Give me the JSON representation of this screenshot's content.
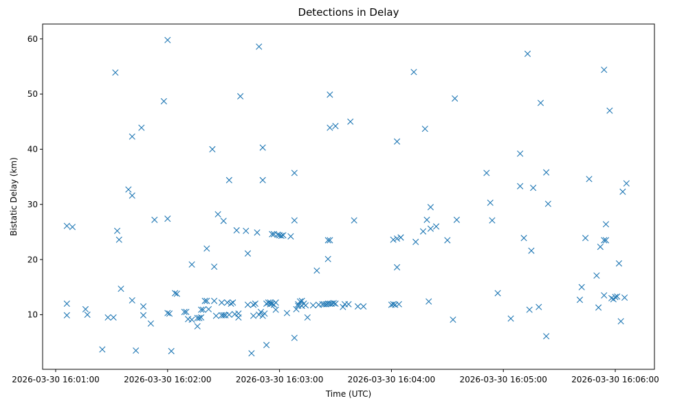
{
  "chart_data": {
    "type": "scatter",
    "title": "Detections in Delay",
    "xlabel": "Time (UTC)",
    "ylabel": "Bistatic Delay (km)",
    "x_tick_labels": [
      "2026-03-30 16:01:00",
      "2026-03-30 16:02:00",
      "2026-03-30 16:03:00",
      "2026-03-30 16:04:00",
      "2026-03-30 16:05:00",
      "2026-03-30 16:06:00"
    ],
    "y_tick_labels": [
      "10",
      "20",
      "30",
      "40",
      "50",
      "60"
    ],
    "y_ticks": [
      10,
      20,
      30,
      40,
      50,
      60
    ],
    "xlim": [
      "2026-03-30 16:00:53",
      "2026-03-30 16:06:21"
    ],
    "ylim": [
      0.1,
      62.7
    ],
    "grid": false,
    "marker": "x",
    "color": "#1f77b4",
    "series": [
      {
        "points": [
          [
            "16:01:06",
            26.1
          ],
          [
            "16:01:09",
            25.9
          ],
          [
            "16:01:06",
            12.0
          ],
          [
            "16:01:06",
            9.9
          ],
          [
            "16:01:16",
            11.0
          ],
          [
            "16:01:17",
            10.0
          ],
          [
            "16:01:25",
            3.7
          ],
          [
            "16:01:28",
            9.5
          ],
          [
            "16:01:31",
            9.5
          ],
          [
            "16:01:32",
            53.9
          ],
          [
            "16:01:33",
            25.2
          ],
          [
            "16:01:34",
            23.6
          ],
          [
            "16:01:35",
            14.7
          ],
          [
            "16:01:39",
            32.7
          ],
          [
            "16:01:41",
            31.6
          ],
          [
            "16:01:41",
            42.3
          ],
          [
            "16:01:41",
            12.6
          ],
          [
            "16:01:43",
            3.5
          ],
          [
            "16:01:46",
            43.9
          ],
          [
            "16:01:47",
            11.5
          ],
          [
            "16:01:47",
            9.9
          ],
          [
            "16:01:51",
            8.4
          ],
          [
            "16:01:53",
            27.2
          ],
          [
            "16:01:58",
            48.7
          ],
          [
            "16:02:00",
            59.8
          ],
          [
            "16:02:00",
            27.4
          ],
          [
            "16:02:00",
            10.3
          ],
          [
            "16:02:01",
            10.2
          ],
          [
            "16:02:02",
            3.4
          ],
          [
            "16:02:04",
            13.9
          ],
          [
            "16:02:05",
            13.8
          ],
          [
            "16:02:09",
            10.5
          ],
          [
            "16:02:10",
            10.5
          ],
          [
            "16:02:11",
            9.2
          ],
          [
            "16:02:13",
            19.1
          ],
          [
            "16:02:13",
            9.1
          ],
          [
            "16:02:16",
            7.9
          ],
          [
            "16:02:16",
            9.4
          ],
          [
            "16:02:17",
            9.4
          ],
          [
            "16:02:18",
            9.5
          ],
          [
            "16:02:18",
            10.9
          ],
          [
            "16:02:19",
            10.9
          ],
          [
            "16:02:20",
            12.5
          ],
          [
            "16:02:21",
            12.5
          ],
          [
            "16:02:21",
            22.0
          ],
          [
            "16:02:22",
            11.0
          ],
          [
            "16:02:24",
            40.0
          ],
          [
            "16:02:25",
            18.7
          ],
          [
            "16:02:25",
            12.5
          ],
          [
            "16:02:26",
            9.8
          ],
          [
            "16:02:27",
            28.2
          ],
          [
            "16:02:29",
            12.2
          ],
          [
            "16:02:29",
            9.9
          ],
          [
            "16:02:30",
            27.0
          ],
          [
            "16:02:30",
            9.9
          ],
          [
            "16:02:31",
            9.9
          ],
          [
            "16:02:32",
            12.2
          ],
          [
            "16:02:33",
            34.4
          ],
          [
            "16:02:33",
            10.0
          ],
          [
            "16:02:34",
            12.0
          ],
          [
            "16:02:35",
            12.2
          ],
          [
            "16:02:36",
            10.1
          ],
          [
            "16:02:37",
            25.3
          ],
          [
            "16:02:38",
            10.2
          ],
          [
            "16:02:38",
            9.5
          ],
          [
            "16:02:39",
            49.6
          ],
          [
            "16:02:42",
            25.2
          ],
          [
            "16:02:43",
            21.1
          ],
          [
            "16:02:43",
            11.8
          ],
          [
            "16:02:45",
            3.0
          ],
          [
            "16:02:46",
            9.8
          ],
          [
            "16:02:46",
            11.8
          ],
          [
            "16:02:47",
            12.0
          ],
          [
            "16:02:48",
            24.9
          ],
          [
            "16:02:49",
            58.6
          ],
          [
            "16:02:49",
            10.0
          ],
          [
            "16:02:50",
            10.5
          ],
          [
            "16:02:51",
            40.3
          ],
          [
            "16:02:51",
            34.4
          ],
          [
            "16:02:51",
            9.8
          ],
          [
            "16:02:52",
            10.2
          ],
          [
            "16:02:53",
            12.0
          ],
          [
            "16:02:53",
            4.5
          ],
          [
            "16:02:54",
            12.2
          ],
          [
            "16:02:55",
            11.9
          ],
          [
            "16:02:55",
            12.2
          ],
          [
            "16:02:56",
            24.6
          ],
          [
            "16:02:56",
            12.0
          ],
          [
            "16:02:57",
            24.6
          ],
          [
            "16:02:57",
            11.8
          ],
          [
            "16:02:58",
            12.2
          ],
          [
            "16:02:58",
            10.9
          ],
          [
            "16:02:59",
            24.5
          ],
          [
            "16:03:00",
            24.4
          ],
          [
            "16:03:01",
            24.3
          ],
          [
            "16:03:02",
            24.4
          ],
          [
            "16:03:04",
            10.3
          ],
          [
            "16:03:06",
            24.2
          ],
          [
            "16:03:08",
            35.7
          ],
          [
            "16:03:08",
            27.1
          ],
          [
            "16:03:08",
            5.8
          ],
          [
            "16:03:09",
            11.0
          ],
          [
            "16:03:10",
            11.6
          ],
          [
            "16:03:10",
            11.9
          ],
          [
            "16:03:11",
            12.4
          ],
          [
            "16:03:12",
            11.6
          ],
          [
            "16:03:12",
            12.5
          ],
          [
            "16:03:13",
            12.0
          ],
          [
            "16:03:14",
            11.7
          ],
          [
            "16:03:15",
            9.5
          ],
          [
            "16:03:18",
            11.7
          ],
          [
            "16:03:20",
            18.0
          ],
          [
            "16:03:21",
            11.8
          ],
          [
            "16:03:23",
            11.9
          ],
          [
            "16:03:24",
            11.9
          ],
          [
            "16:03:25",
            11.9
          ],
          [
            "16:03:26",
            12.0
          ],
          [
            "16:03:26",
            20.1
          ],
          [
            "16:03:26",
            23.5
          ],
          [
            "16:03:27",
            49.9
          ],
          [
            "16:03:27",
            12.0
          ],
          [
            "16:03:27",
            23.5
          ],
          [
            "16:03:27",
            43.9
          ],
          [
            "16:03:28",
            12.0
          ],
          [
            "16:03:29",
            12.1
          ],
          [
            "16:03:30",
            12.0
          ],
          [
            "16:03:30",
            44.2
          ],
          [
            "16:03:34",
            11.4
          ],
          [
            "16:03:35",
            11.9
          ],
          [
            "16:03:37",
            11.9
          ],
          [
            "16:03:38",
            45.0
          ],
          [
            "16:03:40",
            27.1
          ],
          [
            "16:03:42",
            11.5
          ],
          [
            "16:03:45",
            11.5
          ],
          [
            "16:04:00",
            11.8
          ],
          [
            "16:04:01",
            23.6
          ],
          [
            "16:04:01",
            11.9
          ],
          [
            "16:04:02",
            11.8
          ],
          [
            "16:04:03",
            23.8
          ],
          [
            "16:04:03",
            41.4
          ],
          [
            "16:04:03",
            18.6
          ],
          [
            "16:04:04",
            11.9
          ],
          [
            "16:04:05",
            24.0
          ],
          [
            "16:04:05",
            24.0
          ],
          [
            "16:04:12",
            54.0
          ],
          [
            "16:04:13",
            23.2
          ],
          [
            "16:04:17",
            25.1
          ],
          [
            "16:04:18",
            43.7
          ],
          [
            "16:04:19",
            27.2
          ],
          [
            "16:04:20",
            12.4
          ],
          [
            "16:04:21",
            29.5
          ],
          [
            "16:04:21",
            25.6
          ],
          [
            "16:04:24",
            26.0
          ],
          [
            "16:04:30",
            23.5
          ],
          [
            "16:04:33",
            9.1
          ],
          [
            "16:04:34",
            49.2
          ],
          [
            "16:04:35",
            27.2
          ],
          [
            "16:04:51",
            35.7
          ],
          [
            "16:04:53",
            30.3
          ],
          [
            "16:04:54",
            27.1
          ],
          [
            "16:04:57",
            13.9
          ],
          [
            "16:05:04",
            9.3
          ],
          [
            "16:05:09",
            33.3
          ],
          [
            "16:05:09",
            39.2
          ],
          [
            "16:05:11",
            23.9
          ],
          [
            "16:05:13",
            57.3
          ],
          [
            "16:05:14",
            10.9
          ],
          [
            "16:05:15",
            21.6
          ],
          [
            "16:05:16",
            33.0
          ],
          [
            "16:05:19",
            11.4
          ],
          [
            "16:05:20",
            48.4
          ],
          [
            "16:05:23",
            35.8
          ],
          [
            "16:05:23",
            6.1
          ],
          [
            "16:05:24",
            30.1
          ],
          [
            "16:05:41",
            12.7
          ],
          [
            "16:05:42",
            15.0
          ],
          [
            "16:05:44",
            23.9
          ],
          [
            "16:05:46",
            34.6
          ],
          [
            "16:05:50",
            17.1
          ],
          [
            "16:05:51",
            11.3
          ],
          [
            "16:05:52",
            22.3
          ],
          [
            "16:05:54",
            54.4
          ],
          [
            "16:05:54",
            13.5
          ],
          [
            "16:05:54",
            23.5
          ],
          [
            "16:05:55",
            23.5
          ],
          [
            "16:05:55",
            26.4
          ],
          [
            "16:05:57",
            47.0
          ],
          [
            "16:05:58",
            13.0
          ],
          [
            "16:05:59",
            12.8
          ],
          [
            "16:06:00",
            13.2
          ],
          [
            "16:06:01",
            13.3
          ],
          [
            "16:06:02",
            19.3
          ],
          [
            "16:06:03",
            8.8
          ],
          [
            "16:06:04",
            32.3
          ],
          [
            "16:06:05",
            13.1
          ],
          [
            "16:06:06",
            33.8
          ]
        ]
      }
    ]
  }
}
